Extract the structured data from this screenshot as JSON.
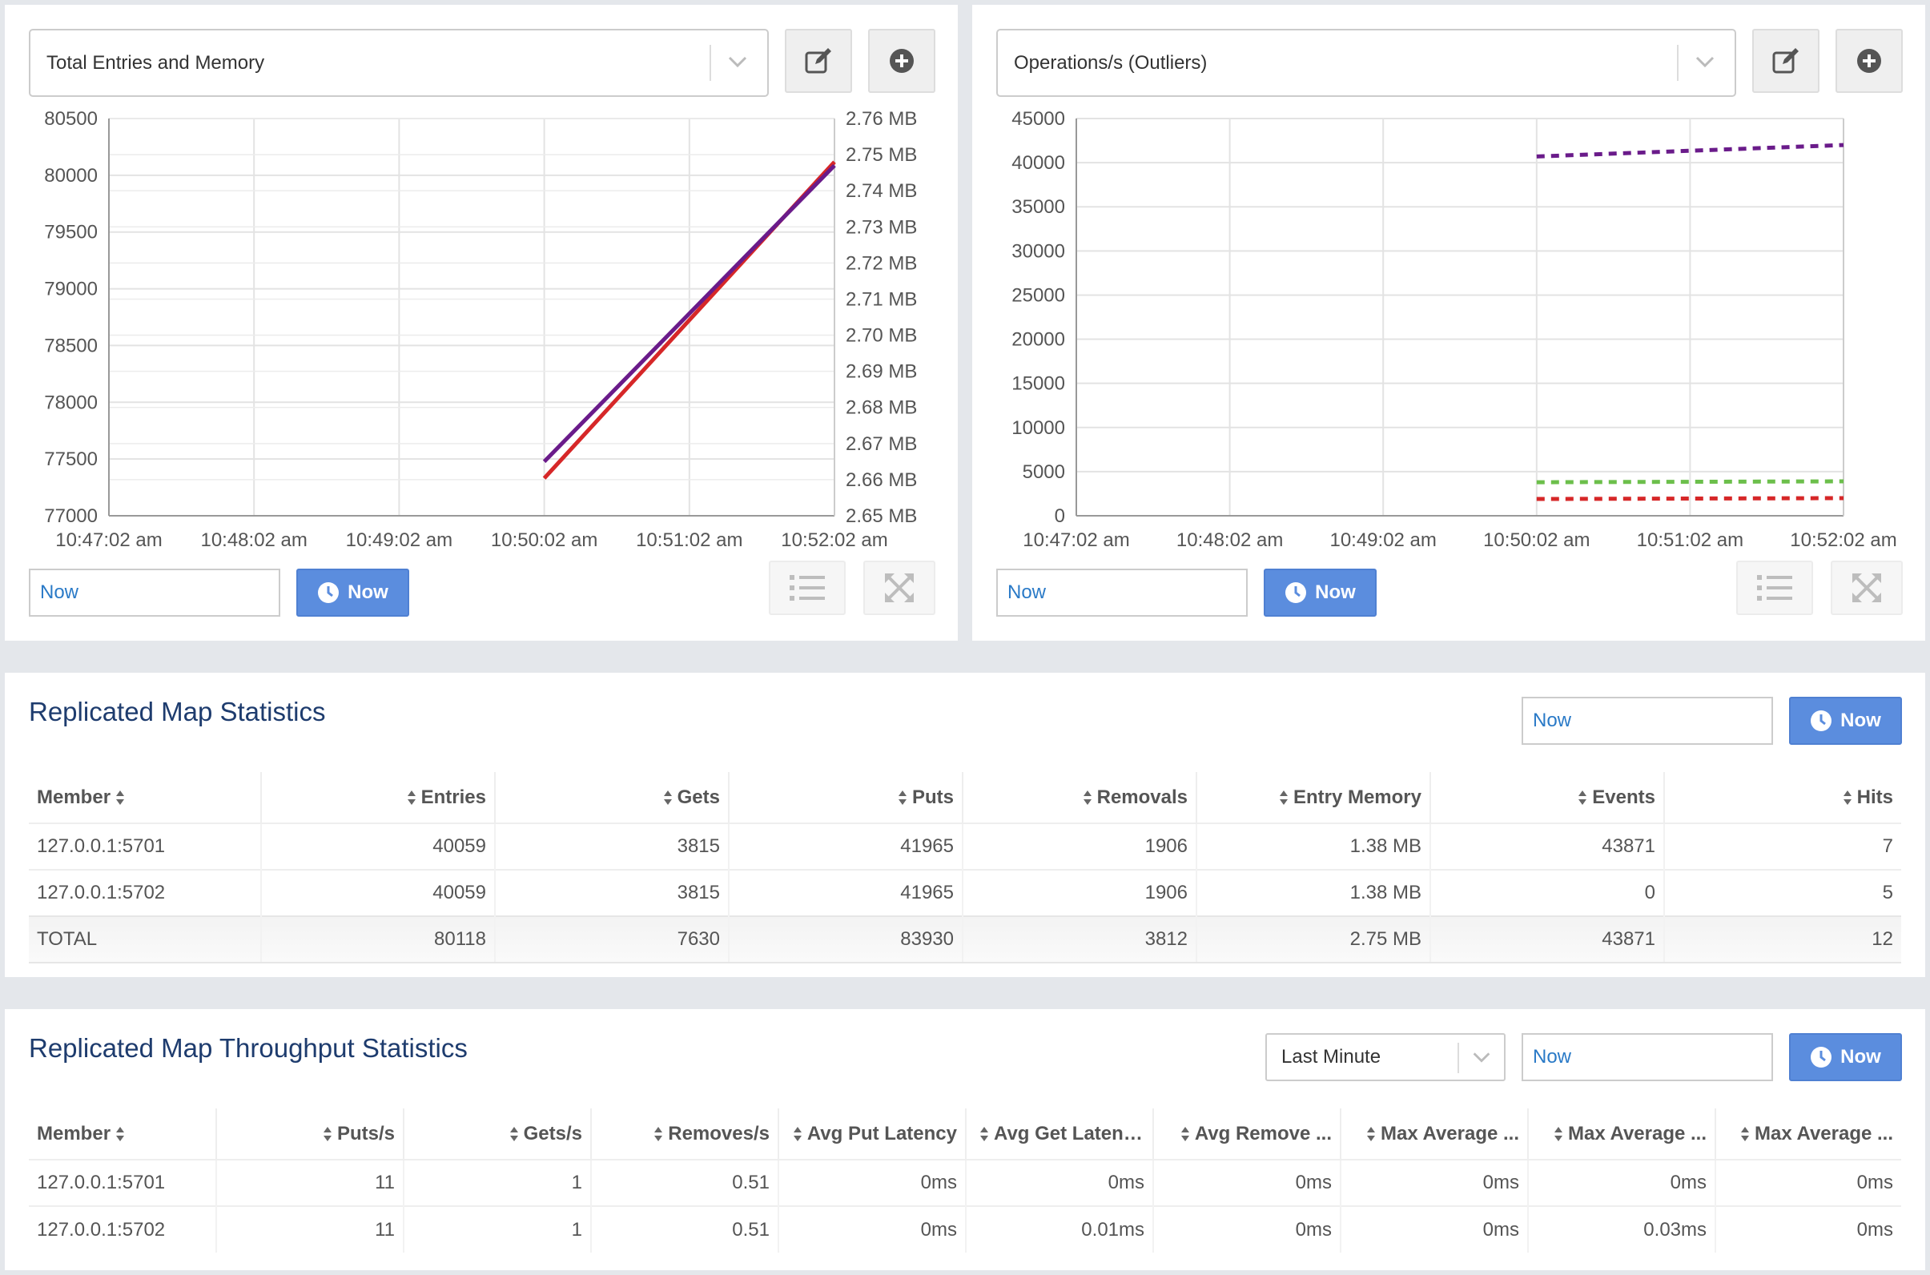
{
  "colors": {
    "accent": "#5b8dde",
    "link": "#2a7ac7",
    "title": "#1e3c6e",
    "series_red": "#d62728",
    "series_purple": "#6a1b8a",
    "series_green": "#6cbf4b"
  },
  "icons": {
    "edit": "edit-icon",
    "add": "plus-circle-icon",
    "list": "list-icon",
    "expand": "expand-icon",
    "clock": "clock-icon",
    "chevron": "chevron-down-icon",
    "sort": "sort-icon"
  },
  "left_chart": {
    "selector_label": "Total Entries and Memory",
    "time_input": "Now",
    "now_label": "Now"
  },
  "right_chart": {
    "selector_label": "Operations/s (Outliers)",
    "time_input": "Now",
    "now_label": "Now"
  },
  "chart_data": [
    {
      "type": "line",
      "title": "Total Entries and Memory",
      "x_ticks": [
        "10:47:02 am",
        "10:48:02 am",
        "10:49:02 am",
        "10:50:02 am",
        "10:51:02 am",
        "10:52:02 am"
      ],
      "ylim_left": [
        77000,
        80500
      ],
      "y_ticks_left": [
        "77000",
        "77500",
        "78000",
        "78500",
        "79000",
        "79500",
        "80000",
        "80500"
      ],
      "ylim_right": [
        2.65,
        2.76
      ],
      "y_ticks_right": [
        "2.65 MB",
        "2.66 MB",
        "2.67 MB",
        "2.68 MB",
        "2.69 MB",
        "2.70 MB",
        "2.71 MB",
        "2.72 MB",
        "2.73 MB",
        "2.74 MB",
        "2.75 MB",
        "2.76 MB"
      ],
      "grid": true,
      "series": [
        {
          "color": "#d62728",
          "axis": "left",
          "x": [
            "10:50:02 am",
            "10:52:02 am"
          ],
          "values": [
            77330,
            80118
          ]
        },
        {
          "color": "#6a1b8a",
          "axis": "right",
          "x": [
            "10:50:02 am",
            "10:52:02 am"
          ],
          "values": [
            2.665,
            2.747
          ]
        }
      ]
    },
    {
      "type": "line",
      "title": "Operations/s (Outliers)",
      "x_ticks": [
        "10:47:02 am",
        "10:48:02 am",
        "10:49:02 am",
        "10:50:02 am",
        "10:51:02 am",
        "10:52:02 am"
      ],
      "ylim": [
        0,
        45000
      ],
      "y_ticks": [
        "0",
        "5000",
        "10000",
        "15000",
        "20000",
        "25000",
        "30000",
        "35000",
        "40000",
        "45000"
      ],
      "grid": true,
      "series": [
        {
          "color": "#6a1b8a",
          "dashed": true,
          "x": [
            "10:50:02 am",
            "10:52:02 am"
          ],
          "values": [
            40700,
            42000
          ]
        },
        {
          "color": "#6cbf4b",
          "dashed": true,
          "x": [
            "10:50:02 am",
            "10:52:02 am"
          ],
          "values": [
            3800,
            3900
          ]
        },
        {
          "color": "#d62728",
          "dashed": true,
          "x": [
            "10:50:02 am",
            "10:52:02 am"
          ],
          "values": [
            1900,
            2000
          ]
        }
      ]
    }
  ],
  "stats": {
    "title": "Replicated Map Statistics",
    "time_input": "Now",
    "now_label": "Now",
    "columns": [
      "Member",
      "Entries",
      "Gets",
      "Puts",
      "Removals",
      "Entry Memory",
      "Events",
      "Hits"
    ],
    "rows": [
      [
        "127.0.0.1:5701",
        "40059",
        "3815",
        "41965",
        "1906",
        "1.38 MB",
        "43871",
        "7"
      ],
      [
        "127.0.0.1:5702",
        "40059",
        "3815",
        "41965",
        "1906",
        "1.38 MB",
        "0",
        "5"
      ]
    ],
    "total": [
      "TOTAL",
      "80118",
      "7630",
      "83930",
      "3812",
      "2.75 MB",
      "43871",
      "12"
    ]
  },
  "throughput": {
    "title": "Replicated Map Throughput Statistics",
    "range_label": "Last Minute",
    "time_input": "Now",
    "now_label": "Now",
    "columns": [
      "Member",
      "Puts/s",
      "Gets/s",
      "Removes/s",
      "Avg Put Latency",
      "Avg Get Latency",
      "Avg Remove ...",
      "Max Average ...",
      "Max Average ...",
      "Max Average ..."
    ],
    "rows": [
      [
        "127.0.0.1:5701",
        "11",
        "1",
        "0.51",
        "0ms",
        "0ms",
        "0ms",
        "0ms",
        "0ms",
        "0ms"
      ],
      [
        "127.0.0.1:5702",
        "11",
        "1",
        "0.51",
        "0ms",
        "0.01ms",
        "0ms",
        "0ms",
        "0.03ms",
        "0ms"
      ]
    ]
  }
}
